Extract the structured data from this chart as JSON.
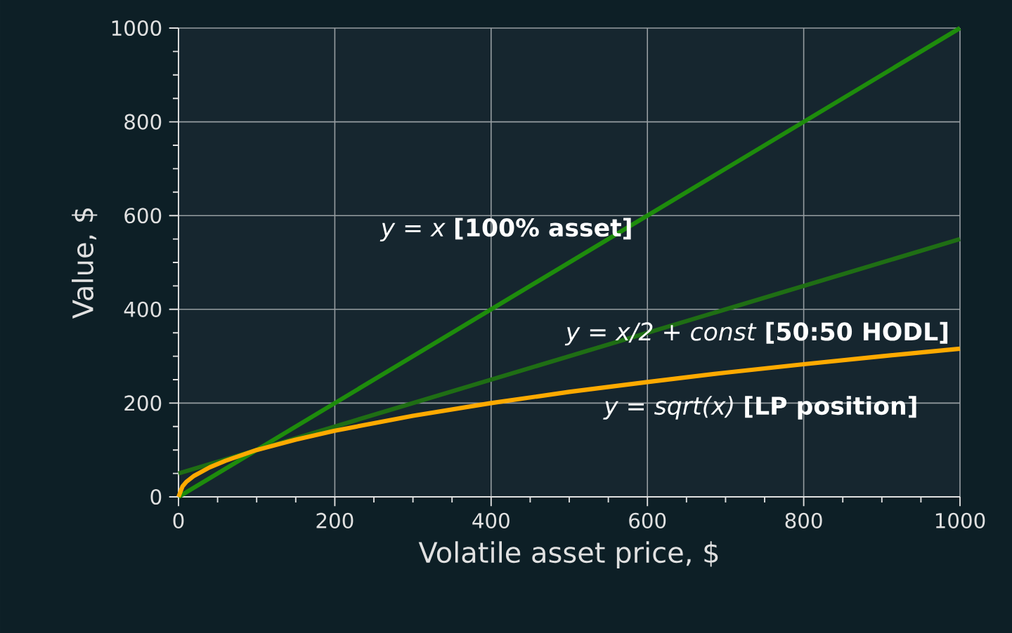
{
  "chart_data": {
    "type": "line",
    "xlabel": "Volatile asset price, $",
    "ylabel": "Value, $",
    "xlim": [
      0,
      1000
    ],
    "ylim": [
      0,
      1000
    ],
    "xticks": [
      0,
      200,
      400,
      600,
      800,
      1000
    ],
    "yticks": [
      0,
      200,
      400,
      600,
      800,
      1000
    ],
    "grid": true,
    "series": [
      {
        "color": "#1e8c0c",
        "x": [
          0,
          1000
        ],
        "values": [
          0,
          1000
        ]
      },
      {
        "color": "#1f6e14",
        "x": [
          0,
          1000
        ],
        "values": [
          50,
          550
        ]
      },
      {
        "color": "#ffaa00",
        "x": [
          0,
          5,
          10,
          20,
          40,
          60,
          100,
          150,
          200,
          300,
          400,
          500,
          600,
          700,
          800,
          900,
          1000
        ],
        "values": [
          0,
          22,
          32,
          45,
          63,
          77,
          100,
          122,
          141,
          173,
          200,
          224,
          245,
          265,
          283,
          300,
          316
        ]
      }
    ],
    "annotations": [
      "*y = x* **[100% asset]**",
      "*y = x/2 + const* **[50:50 HODL]**",
      "*y = sqrt(x)* **[LP position]**"
    ]
  }
}
